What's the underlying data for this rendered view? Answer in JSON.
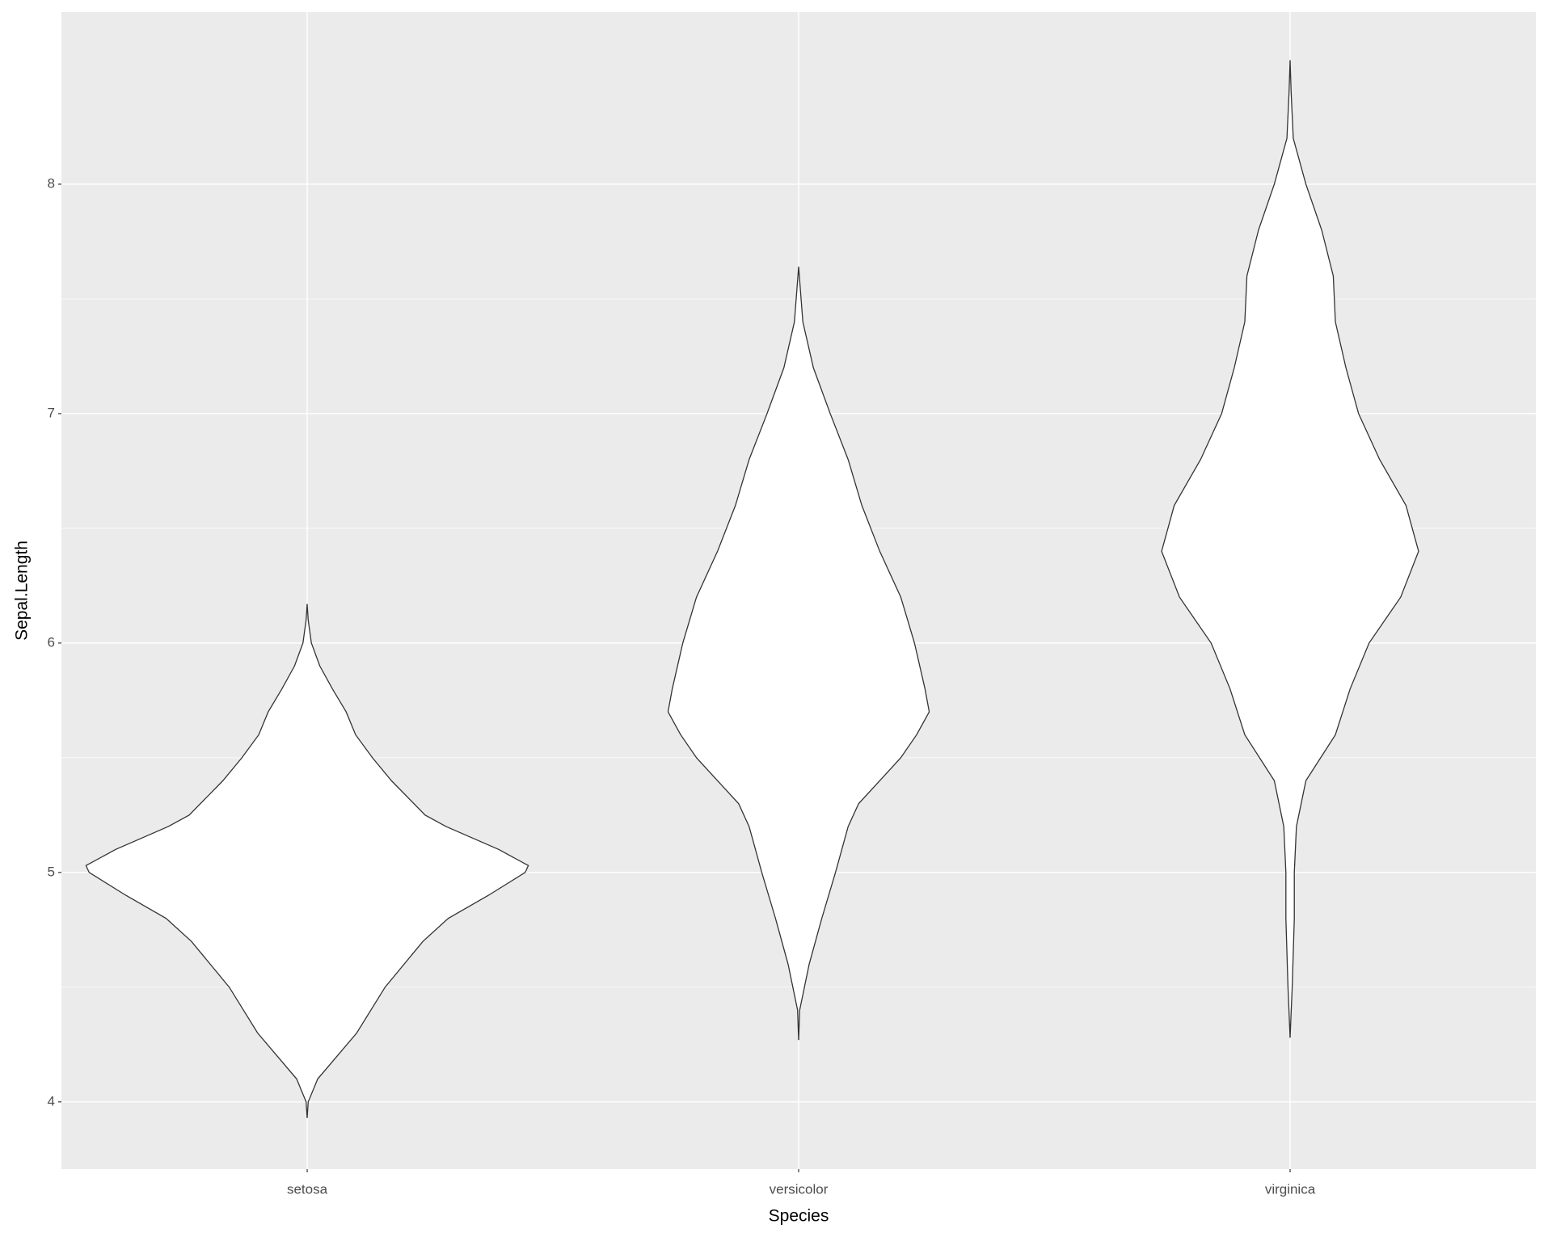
{
  "chart_data": {
    "type": "violin",
    "x_label": "Species",
    "y_label": "Sepal.Length",
    "categories": [
      "setosa",
      "versicolor",
      "virginica"
    ],
    "series": [
      {
        "name": "setosa",
        "fill": "#ffffff",
        "color": "#333333",
        "y": [
          3.93,
          4.0,
          4.1,
          4.3,
          4.5,
          4.7,
          4.8,
          4.9,
          5.0,
          5.03,
          5.1,
          5.2,
          5.25,
          5.4,
          5.5,
          5.6,
          5.7,
          5.8,
          5.9,
          6.0,
          6.1,
          6.17
        ],
        "widths": [
          0,
          1,
          10,
          47,
          74,
          110,
          134,
          172,
          207,
          210,
          182,
          132,
          112,
          80,
          62,
          46,
          37,
          24,
          12,
          4,
          1,
          0
        ]
      },
      {
        "name": "versicolor",
        "fill": "#ffffff",
        "color": "#333333",
        "y": [
          4.27,
          4.4,
          4.6,
          4.8,
          5.0,
          5.2,
          5.3,
          5.4,
          5.5,
          5.6,
          5.7,
          5.8,
          6.0,
          6.2,
          6.4,
          6.6,
          6.8,
          7.0,
          7.2,
          7.4,
          7.64
        ],
        "widths": [
          0,
          1,
          10,
          22,
          35,
          47,
          57,
          77,
          97,
          112,
          124,
          120,
          110,
          97,
          77,
          60,
          47,
          30,
          14,
          4,
          0
        ]
      },
      {
        "name": "virginica",
        "fill": "#ffffff",
        "color": "#333333",
        "y": [
          4.28,
          4.5,
          4.8,
          5.0,
          5.2,
          5.4,
          5.6,
          5.8,
          6.0,
          6.2,
          6.4,
          6.6,
          6.8,
          7.0,
          7.2,
          7.4,
          7.6,
          7.8,
          8.0,
          8.2,
          8.4,
          8.54
        ],
        "widths": [
          0,
          2,
          4,
          4,
          6,
          15,
          43,
          57,
          75,
          105,
          122,
          110,
          85,
          65,
          53,
          43,
          41,
          30,
          15,
          3,
          1,
          0
        ]
      }
    ],
    "ylim": [
      3.707,
      8.75
    ],
    "yticks": [
      4,
      5,
      6,
      7,
      8
    ],
    "grid": true,
    "panel_color": "#ebebeb",
    "grid_color": "#ffffff"
  }
}
